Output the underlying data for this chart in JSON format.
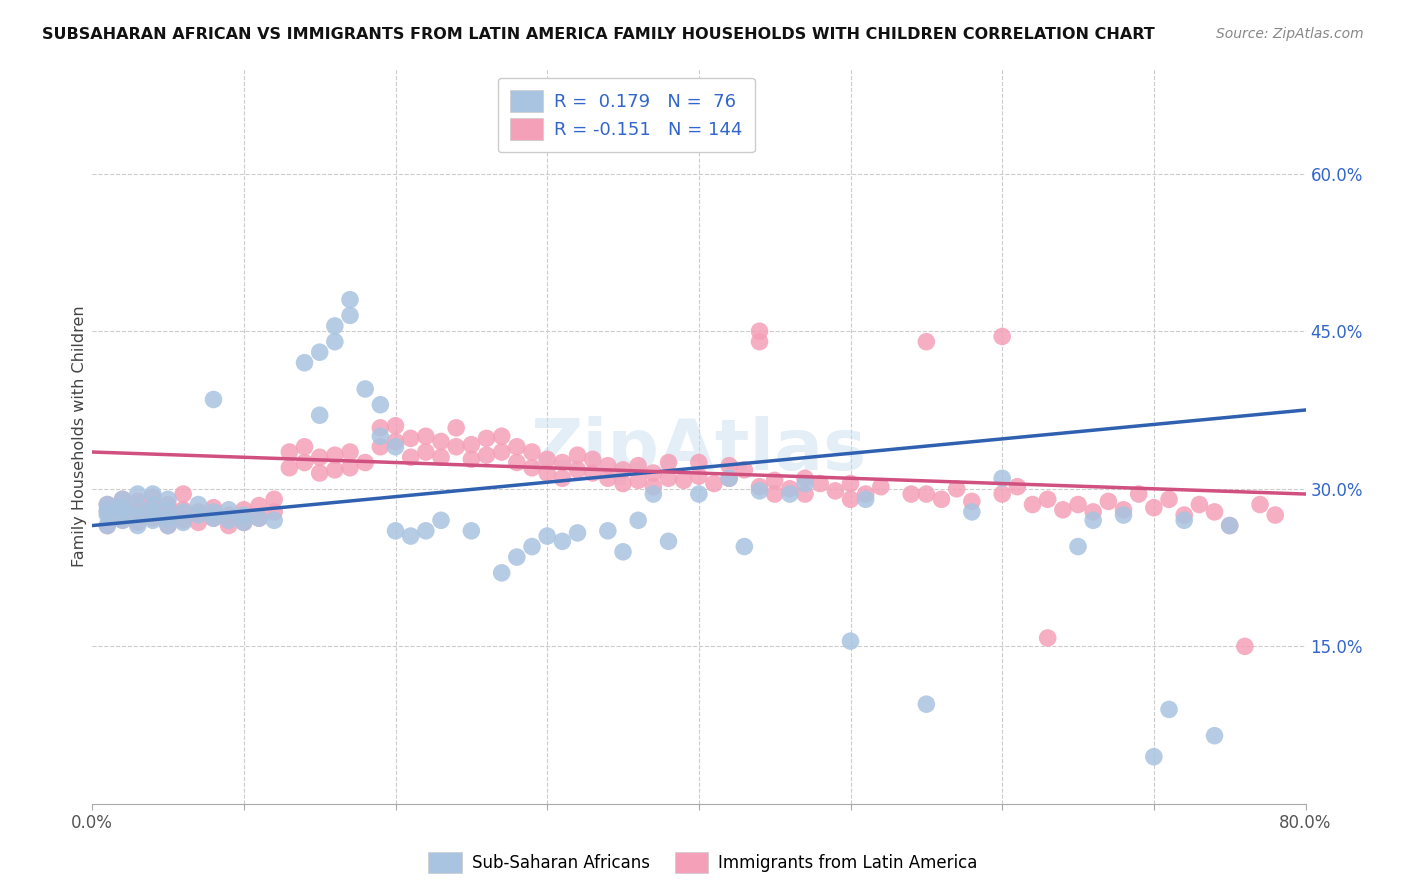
{
  "title": "SUBSAHARAN AFRICAN VS IMMIGRANTS FROM LATIN AMERICA FAMILY HOUSEHOLDS WITH CHILDREN CORRELATION CHART",
  "source": "Source: ZipAtlas.com",
  "ylabel": "Family Households with Children",
  "xlim": [
    0.0,
    0.8
  ],
  "ylim": [
    0.0,
    0.7
  ],
  "xtick_positions": [
    0.0,
    0.1,
    0.2,
    0.3,
    0.4,
    0.5,
    0.6,
    0.7,
    0.8
  ],
  "xticklabels": [
    "0.0%",
    "",
    "",
    "",
    "",
    "",
    "",
    "",
    "80.0%"
  ],
  "yticks_right": [
    0.15,
    0.3,
    0.45,
    0.6
  ],
  "ytick_right_labels": [
    "15.0%",
    "30.0%",
    "45.0%",
    "60.0%"
  ],
  "blue_color": "#a8c4e0",
  "blue_line_color": "#3060b0",
  "pink_color": "#f4a0b8",
  "pink_line_color": "#d05080",
  "R_blue": 0.179,
  "N_blue": 76,
  "R_pink": -0.151,
  "N_pink": 144,
  "legend_label_blue": "Sub-Saharan Africans",
  "legend_label_pink": "Immigrants from Latin America",
  "watermark": "ZipAtlas",
  "blue_line_x0": 0.0,
  "blue_line_y0": 0.265,
  "blue_line_x1": 0.8,
  "blue_line_y1": 0.375,
  "pink_line_x0": 0.0,
  "pink_line_y0": 0.335,
  "pink_line_x1": 0.8,
  "pink_line_y1": 0.295,
  "blue_scatter": [
    [
      0.01,
      0.265
    ],
    [
      0.01,
      0.275
    ],
    [
      0.01,
      0.28
    ],
    [
      0.01,
      0.285
    ],
    [
      0.02,
      0.27
    ],
    [
      0.02,
      0.278
    ],
    [
      0.02,
      0.283
    ],
    [
      0.02,
      0.29
    ],
    [
      0.03,
      0.265
    ],
    [
      0.03,
      0.275
    ],
    [
      0.03,
      0.282
    ],
    [
      0.03,
      0.295
    ],
    [
      0.04,
      0.27
    ],
    [
      0.04,
      0.278
    ],
    [
      0.04,
      0.285
    ],
    [
      0.04,
      0.295
    ],
    [
      0.05,
      0.265
    ],
    [
      0.05,
      0.272
    ],
    [
      0.05,
      0.28
    ],
    [
      0.05,
      0.29
    ],
    [
      0.06,
      0.268
    ],
    [
      0.06,
      0.278
    ],
    [
      0.07,
      0.275
    ],
    [
      0.07,
      0.285
    ],
    [
      0.08,
      0.272
    ],
    [
      0.08,
      0.278
    ],
    [
      0.09,
      0.27
    ],
    [
      0.09,
      0.28
    ],
    [
      0.1,
      0.268
    ],
    [
      0.1,
      0.275
    ],
    [
      0.11,
      0.272
    ],
    [
      0.12,
      0.27
    ],
    [
      0.08,
      0.385
    ],
    [
      0.14,
      0.42
    ],
    [
      0.15,
      0.37
    ],
    [
      0.15,
      0.43
    ],
    [
      0.16,
      0.44
    ],
    [
      0.16,
      0.455
    ],
    [
      0.17,
      0.465
    ],
    [
      0.17,
      0.48
    ],
    [
      0.18,
      0.395
    ],
    [
      0.19,
      0.35
    ],
    [
      0.19,
      0.38
    ],
    [
      0.2,
      0.26
    ],
    [
      0.2,
      0.34
    ],
    [
      0.21,
      0.255
    ],
    [
      0.22,
      0.26
    ],
    [
      0.23,
      0.27
    ],
    [
      0.25,
      0.26
    ],
    [
      0.27,
      0.22
    ],
    [
      0.28,
      0.235
    ],
    [
      0.29,
      0.245
    ],
    [
      0.3,
      0.255
    ],
    [
      0.31,
      0.25
    ],
    [
      0.32,
      0.258
    ],
    [
      0.34,
      0.26
    ],
    [
      0.35,
      0.24
    ],
    [
      0.36,
      0.27
    ],
    [
      0.37,
      0.295
    ],
    [
      0.38,
      0.25
    ],
    [
      0.4,
      0.295
    ],
    [
      0.42,
      0.31
    ],
    [
      0.43,
      0.245
    ],
    [
      0.44,
      0.298
    ],
    [
      0.46,
      0.295
    ],
    [
      0.47,
      0.305
    ],
    [
      0.5,
      0.155
    ],
    [
      0.51,
      0.29
    ],
    [
      0.55,
      0.095
    ],
    [
      0.58,
      0.278
    ],
    [
      0.6,
      0.31
    ],
    [
      0.65,
      0.245
    ],
    [
      0.66,
      0.27
    ],
    [
      0.68,
      0.275
    ],
    [
      0.7,
      0.045
    ],
    [
      0.71,
      0.09
    ],
    [
      0.72,
      0.27
    ],
    [
      0.74,
      0.065
    ],
    [
      0.75,
      0.265
    ]
  ],
  "pink_scatter": [
    [
      0.01,
      0.265
    ],
    [
      0.01,
      0.278
    ],
    [
      0.01,
      0.285
    ],
    [
      0.02,
      0.27
    ],
    [
      0.02,
      0.28
    ],
    [
      0.02,
      0.29
    ],
    [
      0.03,
      0.268
    ],
    [
      0.03,
      0.278
    ],
    [
      0.03,
      0.288
    ],
    [
      0.04,
      0.272
    ],
    [
      0.04,
      0.282
    ],
    [
      0.04,
      0.292
    ],
    [
      0.05,
      0.265
    ],
    [
      0.05,
      0.275
    ],
    [
      0.05,
      0.285
    ],
    [
      0.06,
      0.27
    ],
    [
      0.06,
      0.28
    ],
    [
      0.06,
      0.295
    ],
    [
      0.07,
      0.268
    ],
    [
      0.07,
      0.278
    ],
    [
      0.08,
      0.272
    ],
    [
      0.08,
      0.282
    ],
    [
      0.09,
      0.265
    ],
    [
      0.09,
      0.275
    ],
    [
      0.1,
      0.268
    ],
    [
      0.1,
      0.28
    ],
    [
      0.11,
      0.272
    ],
    [
      0.11,
      0.284
    ],
    [
      0.12,
      0.278
    ],
    [
      0.12,
      0.29
    ],
    [
      0.13,
      0.32
    ],
    [
      0.13,
      0.335
    ],
    [
      0.14,
      0.325
    ],
    [
      0.14,
      0.34
    ],
    [
      0.15,
      0.315
    ],
    [
      0.15,
      0.33
    ],
    [
      0.16,
      0.318
    ],
    [
      0.16,
      0.332
    ],
    [
      0.17,
      0.32
    ],
    [
      0.17,
      0.335
    ],
    [
      0.18,
      0.325
    ],
    [
      0.19,
      0.34
    ],
    [
      0.19,
      0.358
    ],
    [
      0.2,
      0.345
    ],
    [
      0.2,
      0.36
    ],
    [
      0.21,
      0.33
    ],
    [
      0.21,
      0.348
    ],
    [
      0.22,
      0.335
    ],
    [
      0.22,
      0.35
    ],
    [
      0.23,
      0.33
    ],
    [
      0.23,
      0.345
    ],
    [
      0.24,
      0.34
    ],
    [
      0.24,
      0.358
    ],
    [
      0.25,
      0.328
    ],
    [
      0.25,
      0.342
    ],
    [
      0.26,
      0.332
    ],
    [
      0.26,
      0.348
    ],
    [
      0.27,
      0.335
    ],
    [
      0.27,
      0.35
    ],
    [
      0.28,
      0.325
    ],
    [
      0.28,
      0.34
    ],
    [
      0.29,
      0.32
    ],
    [
      0.29,
      0.335
    ],
    [
      0.3,
      0.315
    ],
    [
      0.3,
      0.328
    ],
    [
      0.31,
      0.31
    ],
    [
      0.31,
      0.325
    ],
    [
      0.32,
      0.318
    ],
    [
      0.32,
      0.332
    ],
    [
      0.33,
      0.315
    ],
    [
      0.33,
      0.328
    ],
    [
      0.34,
      0.31
    ],
    [
      0.34,
      0.322
    ],
    [
      0.35,
      0.305
    ],
    [
      0.35,
      0.318
    ],
    [
      0.36,
      0.308
    ],
    [
      0.36,
      0.322
    ],
    [
      0.37,
      0.302
    ],
    [
      0.37,
      0.315
    ],
    [
      0.38,
      0.31
    ],
    [
      0.38,
      0.325
    ],
    [
      0.39,
      0.308
    ],
    [
      0.4,
      0.312
    ],
    [
      0.4,
      0.325
    ],
    [
      0.41,
      0.305
    ],
    [
      0.42,
      0.31
    ],
    [
      0.42,
      0.322
    ],
    [
      0.43,
      0.318
    ],
    [
      0.44,
      0.302
    ],
    [
      0.45,
      0.295
    ],
    [
      0.45,
      0.308
    ],
    [
      0.46,
      0.3
    ],
    [
      0.47,
      0.295
    ],
    [
      0.47,
      0.31
    ],
    [
      0.48,
      0.305
    ],
    [
      0.49,
      0.298
    ],
    [
      0.5,
      0.29
    ],
    [
      0.5,
      0.305
    ],
    [
      0.51,
      0.295
    ],
    [
      0.52,
      0.302
    ],
    [
      0.55,
      0.295
    ],
    [
      0.56,
      0.29
    ],
    [
      0.57,
      0.3
    ],
    [
      0.58,
      0.288
    ],
    [
      0.6,
      0.295
    ],
    [
      0.61,
      0.302
    ],
    [
      0.62,
      0.285
    ],
    [
      0.63,
      0.158
    ],
    [
      0.63,
      0.29
    ],
    [
      0.64,
      0.28
    ],
    [
      0.65,
      0.285
    ],
    [
      0.66,
      0.278
    ],
    [
      0.67,
      0.288
    ],
    [
      0.68,
      0.28
    ],
    [
      0.69,
      0.295
    ],
    [
      0.7,
      0.282
    ],
    [
      0.71,
      0.29
    ],
    [
      0.72,
      0.275
    ],
    [
      0.73,
      0.285
    ],
    [
      0.74,
      0.278
    ],
    [
      0.75,
      0.265
    ],
    [
      0.55,
      0.44
    ],
    [
      0.6,
      0.445
    ],
    [
      0.76,
      0.15
    ],
    [
      0.77,
      0.285
    ],
    [
      0.78,
      0.275
    ],
    [
      0.54,
      0.295
    ],
    [
      0.44,
      0.44
    ],
    [
      0.44,
      0.45
    ]
  ]
}
